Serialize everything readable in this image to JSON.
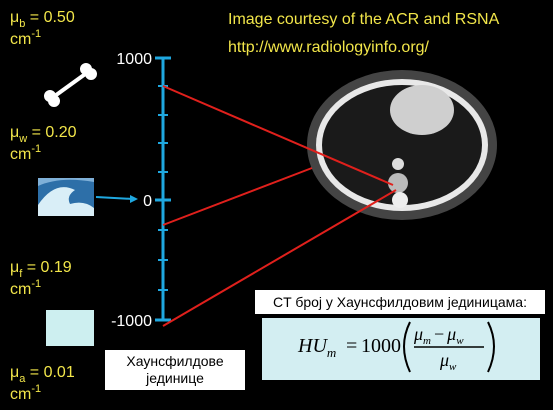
{
  "credits": {
    "line1": "Image courtesy of the ACR and RSNA",
    "line2": "http://www.radiologyinfo.org/"
  },
  "materials": [
    {
      "symbol": "μ",
      "sub": "b",
      "value": " = 0.50",
      "unit": "cm",
      "exp": "-1"
    },
    {
      "symbol": "μ",
      "sub": "w",
      "value": " = 0.20",
      "unit": "cm",
      "exp": "-1"
    },
    {
      "symbol": "μ",
      "sub": "f",
      "value": " = 0.19",
      "unit": "cm",
      "exp": "-1"
    },
    {
      "symbol": "μ",
      "sub": "a",
      "value": " = 0.01",
      "unit": "cm",
      "exp": "-1"
    }
  ],
  "scale": {
    "labels": [
      "1000",
      "0",
      "-1000"
    ],
    "title_lines": [
      "Хаунсфилдове",
      "јединице"
    ]
  },
  "formula": {
    "caption": "CT број у Хаунсфилдовим јединицама:",
    "lhs": "HU",
    "lhs_sub": "m",
    "equals": "=",
    "coefficient": "1000",
    "num_a": "μ",
    "num_a_sub": "m",
    "minus": "−",
    "num_b": "μ",
    "num_b_sub": "w",
    "den": "μ",
    "den_sub": "w"
  }
}
